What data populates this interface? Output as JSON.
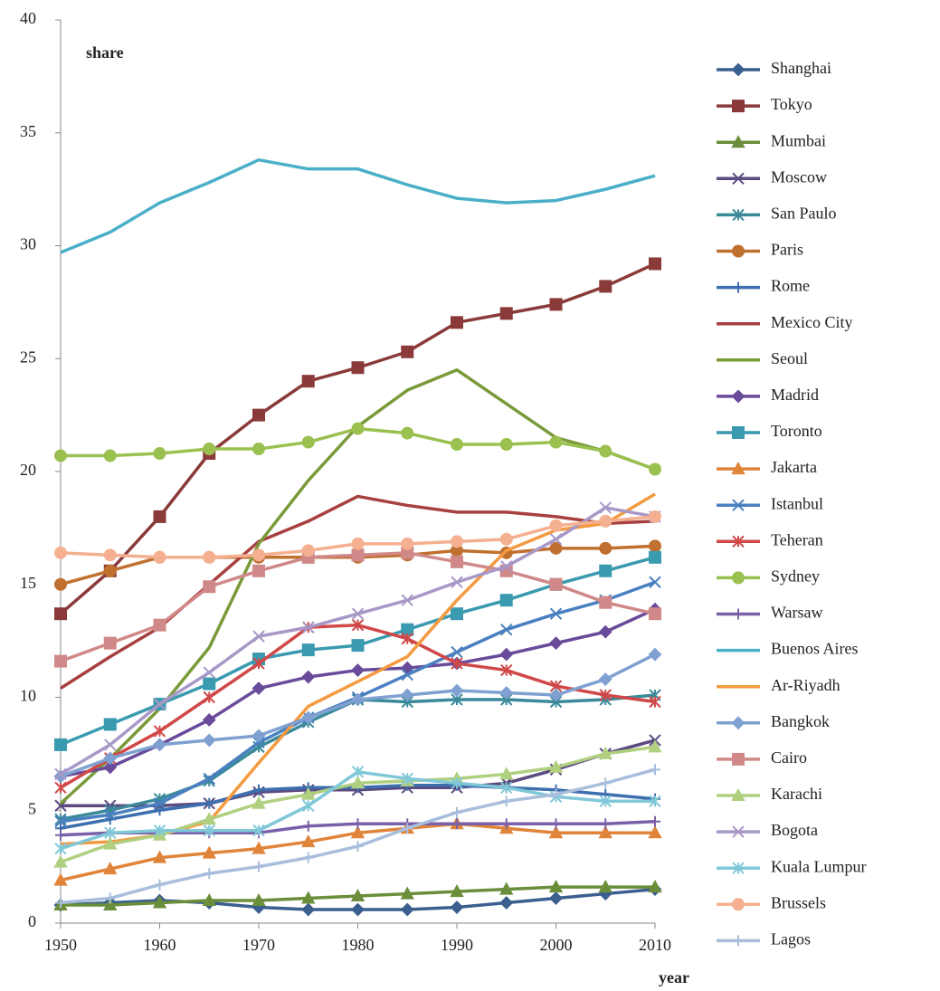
{
  "chart_data": {
    "type": "line",
    "x_label": "year",
    "y_label": "share",
    "x": [
      1950,
      1955,
      1960,
      1965,
      1970,
      1975,
      1980,
      1985,
      1990,
      1995,
      2000,
      2005,
      2010
    ],
    "xlim": [
      1950,
      2010
    ],
    "xticks": [
      1950,
      1960,
      1970,
      1980,
      1990,
      2000,
      2010
    ],
    "ylim": [
      0,
      40
    ],
    "yticks": [
      0,
      5,
      10,
      15,
      20,
      25,
      30,
      35,
      40
    ],
    "grid": false,
    "legend": "right",
    "series": [
      {
        "name": "Shanghai",
        "color": "#3b5f8f",
        "marker": "diamond",
        "values": [
          0.8,
          0.9,
          1.0,
          0.9,
          0.7,
          0.6,
          0.6,
          0.6,
          0.7,
          0.9,
          1.1,
          1.3,
          1.5
        ]
      },
      {
        "name": "Tokyo",
        "color": "#8b3a3a",
        "marker": "square",
        "values": [
          13.7,
          15.6,
          18.0,
          20.8,
          22.5,
          24.0,
          24.6,
          25.3,
          26.6,
          27.0,
          27.4,
          28.2,
          29.2
        ]
      },
      {
        "name": "Mumbai",
        "color": "#6b8e3a",
        "marker": "triangle",
        "values": [
          0.8,
          0.8,
          0.9,
          1.0,
          1.0,
          1.1,
          1.2,
          1.3,
          1.4,
          1.5,
          1.6,
          1.6,
          1.6
        ]
      },
      {
        "name": "Moscow",
        "color": "#5b4a80",
        "marker": "x",
        "values": [
          5.2,
          5.2,
          5.2,
          5.3,
          5.8,
          5.9,
          5.9,
          6.0,
          6.0,
          6.2,
          6.8,
          7.5,
          8.1
        ]
      },
      {
        "name": "San Paulo",
        "color": "#3a8a9a",
        "marker": "star",
        "values": [
          4.6,
          5.0,
          5.5,
          6.3,
          7.8,
          8.9,
          9.9,
          9.8,
          9.9,
          9.9,
          9.8,
          9.9,
          10.1
        ]
      },
      {
        "name": "Paris",
        "color": "#c0702f",
        "marker": "circle",
        "values": [
          15.0,
          15.6,
          16.2,
          16.2,
          16.2,
          16.2,
          16.2,
          16.3,
          16.5,
          16.4,
          16.6,
          16.6,
          16.7
        ]
      },
      {
        "name": "Rome",
        "color": "#3d6fae",
        "marker": "plus",
        "values": [
          4.2,
          4.6,
          5.0,
          5.3,
          5.9,
          6.0,
          6.0,
          6.1,
          6.1,
          6.0,
          5.9,
          5.7,
          5.5
        ]
      },
      {
        "name": "Mexico City",
        "color": "#a84040",
        "marker": "none",
        "values": [
          10.4,
          11.8,
          13.1,
          15.0,
          16.9,
          17.8,
          18.9,
          18.5,
          18.2,
          18.2,
          18.0,
          17.7,
          17.8
        ]
      },
      {
        "name": "Seoul",
        "color": "#7a9a3a",
        "marker": "none",
        "values": [
          5.3,
          7.3,
          9.5,
          12.2,
          16.8,
          19.6,
          22.0,
          23.6,
          24.5,
          23.0,
          21.5,
          20.9,
          20.1
        ]
      },
      {
        "name": "Madrid",
        "color": "#6a4a9a",
        "marker": "diamond",
        "values": [
          6.5,
          6.9,
          7.9,
          9.0,
          10.4,
          10.9,
          11.2,
          11.3,
          11.5,
          11.9,
          12.4,
          12.9,
          13.9
        ]
      },
      {
        "name": "Toronto",
        "color": "#3a9ab0",
        "marker": "square",
        "values": [
          7.9,
          8.8,
          9.7,
          10.6,
          11.7,
          12.1,
          12.3,
          13.0,
          13.7,
          14.3,
          15.0,
          15.6,
          16.2
        ]
      },
      {
        "name": "Jakarta",
        "color": "#e0843a",
        "marker": "triangle",
        "values": [
          1.9,
          2.4,
          2.9,
          3.1,
          3.3,
          3.6,
          4.0,
          4.2,
          4.4,
          4.2,
          4.0,
          4.0,
          4.0
        ]
      },
      {
        "name": "Istanbul",
        "color": "#4a80c0",
        "marker": "x",
        "values": [
          4.5,
          4.8,
          5.3,
          6.4,
          8.0,
          9.1,
          10.0,
          11.0,
          12.0,
          13.0,
          13.7,
          14.3,
          15.1
        ]
      },
      {
        "name": "Teheran",
        "color": "#d04848",
        "marker": "star",
        "values": [
          6.0,
          7.3,
          8.5,
          10.0,
          11.5,
          13.1,
          13.2,
          12.6,
          11.5,
          11.2,
          10.5,
          10.1,
          9.8
        ]
      },
      {
        "name": "Sydney",
        "color": "#9ac050",
        "marker": "circle",
        "values": [
          20.7,
          20.7,
          20.8,
          21.0,
          21.0,
          21.3,
          21.9,
          21.7,
          21.2,
          21.2,
          21.3,
          20.9,
          20.1
        ]
      },
      {
        "name": "Warsaw",
        "color": "#7a60a8",
        "marker": "plus",
        "values": [
          3.9,
          4.0,
          4.0,
          4.0,
          4.0,
          4.3,
          4.4,
          4.4,
          4.4,
          4.4,
          4.4,
          4.4,
          4.5
        ]
      },
      {
        "name": "Buenos Aires",
        "color": "#4aafc8",
        "marker": "none",
        "values": [
          29.7,
          30.6,
          31.9,
          32.8,
          33.8,
          33.4,
          33.4,
          32.7,
          32.1,
          31.9,
          32.0,
          32.5,
          33.1
        ]
      },
      {
        "name": "Ar-Riyadh",
        "color": "#f49a40",
        "marker": "none",
        "values": [
          3.5,
          3.6,
          3.9,
          4.5,
          7.1,
          9.6,
          10.7,
          11.8,
          14.3,
          16.5,
          17.4,
          17.7,
          19.0
        ]
      },
      {
        "name": "Bangkok",
        "color": "#7fa0d0",
        "marker": "diamond",
        "values": [
          6.5,
          7.3,
          7.9,
          8.1,
          8.3,
          9.1,
          9.9,
          10.1,
          10.3,
          10.2,
          10.1,
          10.8,
          11.9
        ]
      },
      {
        "name": "Cairo",
        "color": "#d08888",
        "marker": "square",
        "values": [
          11.6,
          12.4,
          13.2,
          14.9,
          15.6,
          16.2,
          16.3,
          16.4,
          16.0,
          15.6,
          15.0,
          14.2,
          13.7
        ]
      },
      {
        "name": "Karachi",
        "color": "#b0d080",
        "marker": "triangle",
        "values": [
          2.7,
          3.5,
          3.9,
          4.6,
          5.3,
          5.7,
          6.2,
          6.3,
          6.4,
          6.6,
          6.9,
          7.5,
          7.8
        ]
      },
      {
        "name": "Bogota",
        "color": "#a898c8",
        "marker": "x",
        "values": [
          6.6,
          7.9,
          9.7,
          11.1,
          12.7,
          13.1,
          13.7,
          14.3,
          15.1,
          15.8,
          17.0,
          18.4,
          18.0
        ]
      },
      {
        "name": "Kuala Lumpur",
        "color": "#80c8d8",
        "marker": "star",
        "values": [
          3.3,
          4.0,
          4.1,
          4.1,
          4.1,
          5.2,
          6.7,
          6.4,
          6.2,
          6.0,
          5.6,
          5.4,
          5.4
        ]
      },
      {
        "name": "Brussels",
        "color": "#f4b090",
        "marker": "circle",
        "values": [
          16.4,
          16.3,
          16.2,
          16.2,
          16.3,
          16.5,
          16.8,
          16.8,
          16.9,
          17.0,
          17.6,
          17.8,
          18.0
        ]
      },
      {
        "name": "Lagos",
        "color": "#a8bedc",
        "marker": "plus",
        "values": [
          0.9,
          1.1,
          1.7,
          2.2,
          2.5,
          2.9,
          3.4,
          4.2,
          4.9,
          5.4,
          5.7,
          6.2,
          6.8
        ]
      }
    ]
  }
}
